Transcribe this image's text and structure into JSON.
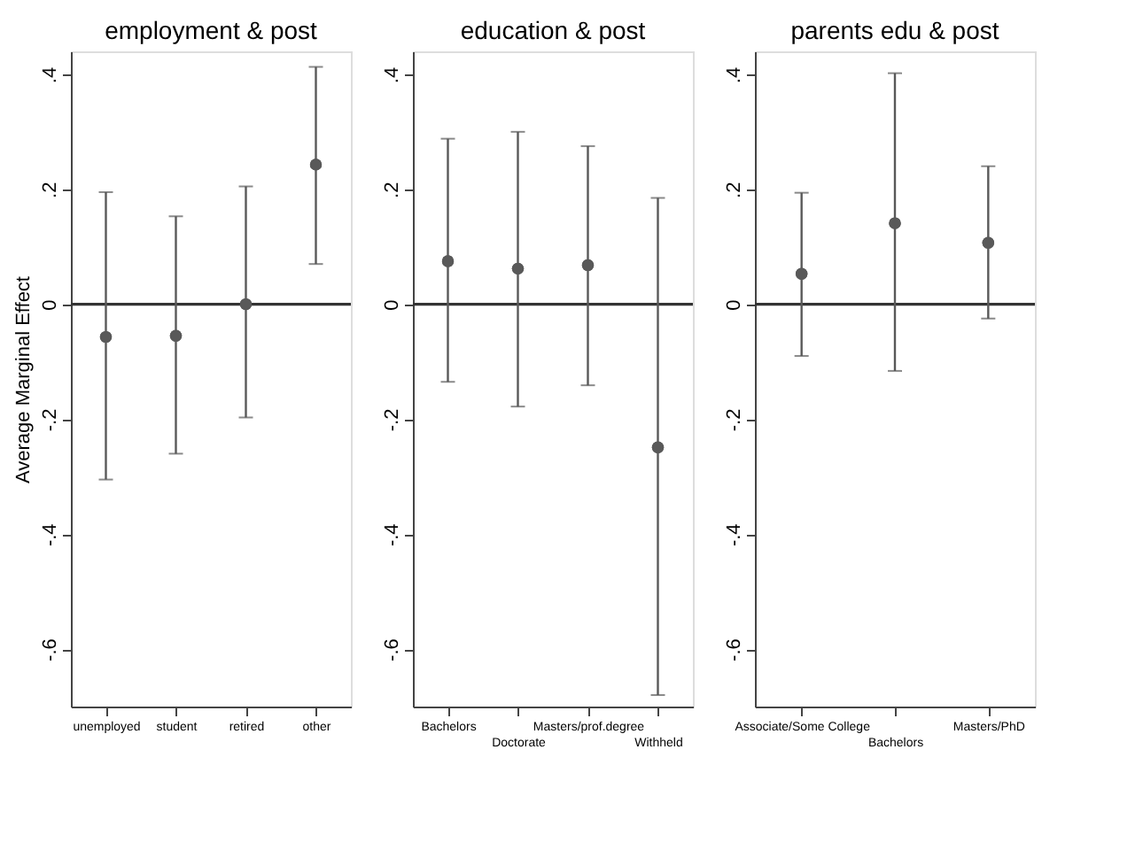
{
  "chart_data": [
    {
      "type": "scatter",
      "title": "employment & post",
      "ylabel": "Average Marginal Effect",
      "categories": [
        "unemployed",
        "student",
        "retired",
        "other"
      ],
      "values": [
        -0.057,
        -0.055,
        0.0,
        0.243
      ],
      "errors": [
        [
          -0.305,
          0.195
        ],
        [
          -0.26,
          0.153
        ],
        [
          -0.197,
          0.205
        ],
        [
          0.07,
          0.413
        ]
      ],
      "color": "#595959",
      "marker": "circle",
      "ylim": [
        -0.7,
        0.44
      ],
      "yticks": [
        {
          "value": 0.4,
          "label": ".4"
        },
        {
          "value": 0.2,
          "label": ".2"
        },
        0,
        {
          "value": -0.2,
          "label": "-.2"
        },
        {
          "value": -0.4,
          "label": "-.4"
        },
        {
          "value": -0.6,
          "label": "-.6"
        }
      ],
      "ref_lines": [
        {
          "axis": "y",
          "value": 0,
          "color": "#333333"
        }
      ],
      "grid": false
    },
    {
      "type": "scatter",
      "title": "education & post",
      "categories": [
        "Bachelors",
        "Doctorate",
        "Masters/prof.degree",
        "Withheld"
      ],
      "values": [
        0.075,
        0.062,
        0.068,
        -0.249
      ],
      "errors": [
        [
          -0.135,
          0.288
        ],
        [
          -0.178,
          0.3
        ],
        [
          -0.141,
          0.275
        ],
        [
          -0.68,
          0.185
        ]
      ],
      "color": "#595959",
      "marker": "circle",
      "ylim": [
        -0.7,
        0.44
      ],
      "yticks": [
        {
          "value": 0.4,
          "label": ".4"
        },
        {
          "value": 0.2,
          "label": ".2"
        },
        0,
        {
          "value": -0.2,
          "label": "-.2"
        },
        {
          "value": -0.4,
          "label": "-.4"
        },
        {
          "value": -0.6,
          "label": "-.6"
        }
      ],
      "ref_lines": [
        {
          "axis": "y",
          "value": 0,
          "color": "#333333"
        }
      ],
      "grid": false
    },
    {
      "type": "scatter",
      "title": "parents edu & post",
      "categories": [
        "Associate/Some College",
        "Bachelors",
        "Masters/PhD"
      ],
      "values": [
        0.053,
        0.141,
        0.107
      ],
      "errors": [
        [
          -0.09,
          0.194
        ],
        [
          -0.116,
          0.402
        ],
        [
          -0.025,
          0.24
        ]
      ],
      "color": "#595959",
      "marker": "circle",
      "ylim": [
        -0.7,
        0.44
      ],
      "yticks": [
        {
          "value": 0.4,
          "label": ".4"
        },
        {
          "value": 0.2,
          "label": ".2"
        },
        0,
        {
          "value": -0.2,
          "label": "-.2"
        },
        {
          "value": -0.4,
          "label": "-.4"
        },
        {
          "value": -0.6,
          "label": "-.6"
        }
      ],
      "ref_lines": [
        {
          "axis": "y",
          "value": 0,
          "color": "#333333"
        }
      ],
      "grid": false
    }
  ]
}
